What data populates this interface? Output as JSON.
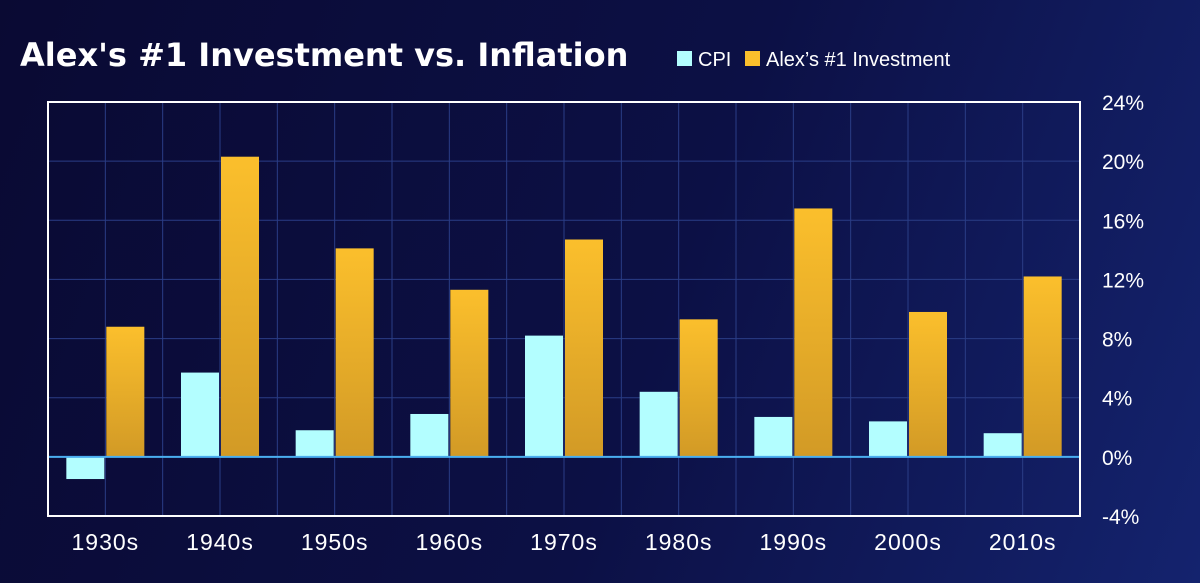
{
  "chart_data": {
    "type": "bar",
    "title": "Alex's #1 Investment vs. Inflation",
    "xlabel": "",
    "ylabel": "",
    "categories": [
      "1930s",
      "1940s",
      "1950s",
      "1960s",
      "1970s",
      "1980s",
      "1990s",
      "2000s",
      "2010s"
    ],
    "series": [
      {
        "name": "CPI",
        "color": "#b3feff",
        "values": [
          -1.5,
          5.7,
          1.8,
          2.9,
          8.2,
          4.4,
          2.7,
          2.4,
          1.6
        ]
      },
      {
        "name": "Alex’s #1 Investment",
        "color": "#fbbf2c",
        "values": [
          8.8,
          20.3,
          14.1,
          11.3,
          14.7,
          9.3,
          16.8,
          9.8,
          12.2
        ]
      }
    ],
    "ylim": [
      -4,
      24
    ],
    "yticks": [
      24,
      20,
      16,
      12,
      8,
      4,
      0,
      -4
    ],
    "ytick_format": "%",
    "y_axis_position": "right",
    "grid": true,
    "legend_position": "top"
  }
}
